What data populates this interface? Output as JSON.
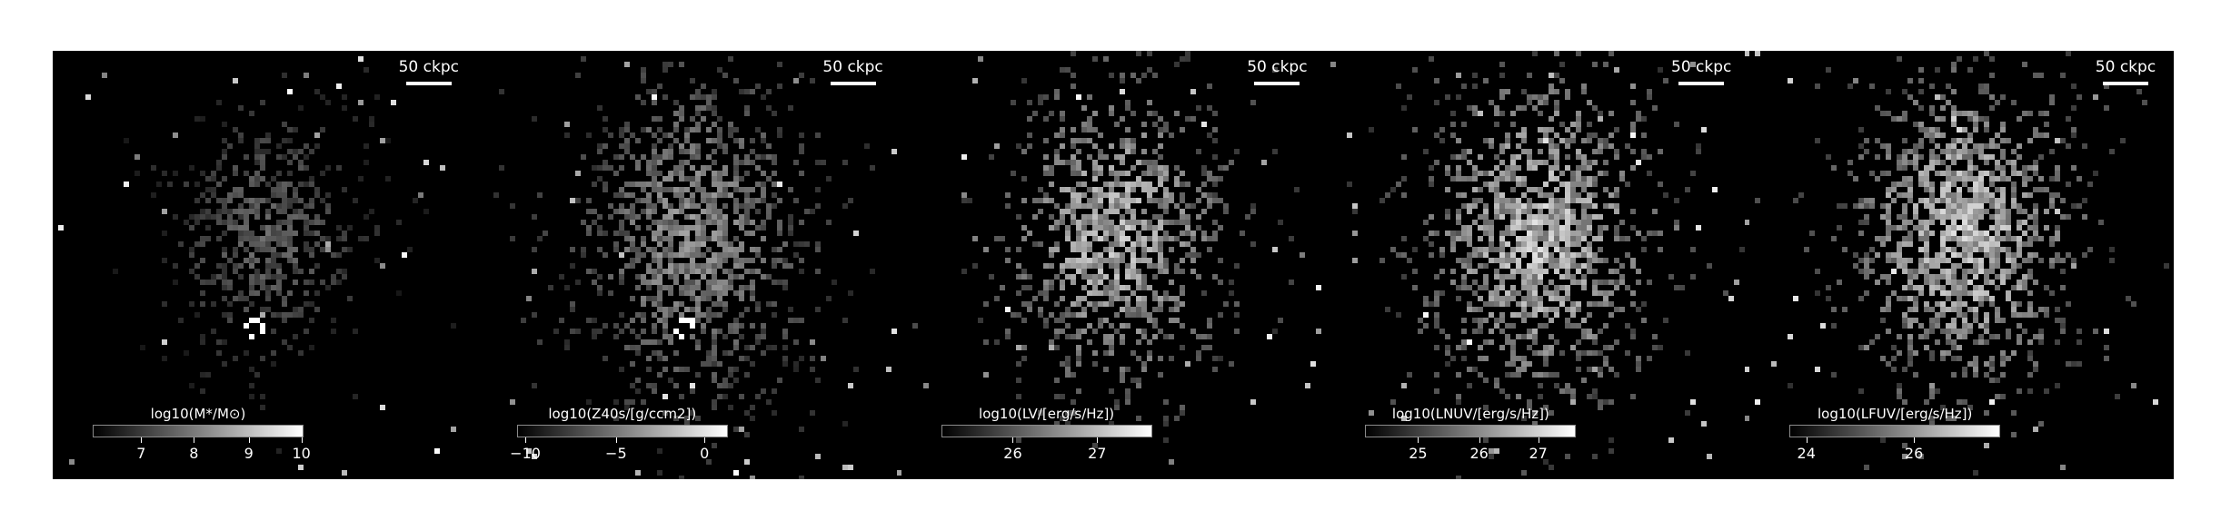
{
  "panels": [
    {
      "scale_label": "50 ckpc",
      "colorbar_label": "log10(M*/M⊙)",
      "ticks": [
        "7",
        "8",
        "9",
        "10"
      ],
      "tick_fractions": [
        0.23,
        0.48,
        0.74,
        0.99
      ],
      "brightness": 0.45,
      "spread": 0.55,
      "dust_density": 0.35,
      "seed": 11,
      "core": 1.0
    },
    {
      "scale_label": "50 ckpc",
      "colorbar_label": "log10(Z40s/[g/ccm2])",
      "ticks": [
        "−10",
        "−5",
        "0"
      ],
      "tick_fractions": [
        0.04,
        0.47,
        0.89
      ],
      "brightness": 0.65,
      "spread": 0.8,
      "dust_density": 0.55,
      "seed": 23,
      "core": 1.0
    },
    {
      "scale_label": "50 ckpc",
      "colorbar_label": "log10(LV/[erg/s/Hz])",
      "ticks": [
        "26",
        "27"
      ],
      "tick_fractions": [
        0.34,
        0.74
      ],
      "brightness": 0.85,
      "spread": 0.75,
      "dust_density": 0.5,
      "seed": 37,
      "core": 0.0
    },
    {
      "scale_label": "50 ckpc",
      "colorbar_label": "log10(LNUV/[erg/s/Hz])",
      "ticks": [
        "25",
        "26",
        "27"
      ],
      "tick_fractions": [
        0.25,
        0.54,
        0.82
      ],
      "brightness": 0.9,
      "spread": 0.8,
      "dust_density": 0.55,
      "seed": 53,
      "core": 0.0
    },
    {
      "scale_label": "50 ckpc",
      "colorbar_label": "log10(LFUV/[erg/s/Hz])",
      "ticks": [
        "24",
        "26"
      ],
      "tick_fractions": [
        0.08,
        0.59
      ],
      "brightness": 0.9,
      "spread": 0.8,
      "dust_density": 0.55,
      "seed": 71,
      "core": 0.0
    }
  ]
}
